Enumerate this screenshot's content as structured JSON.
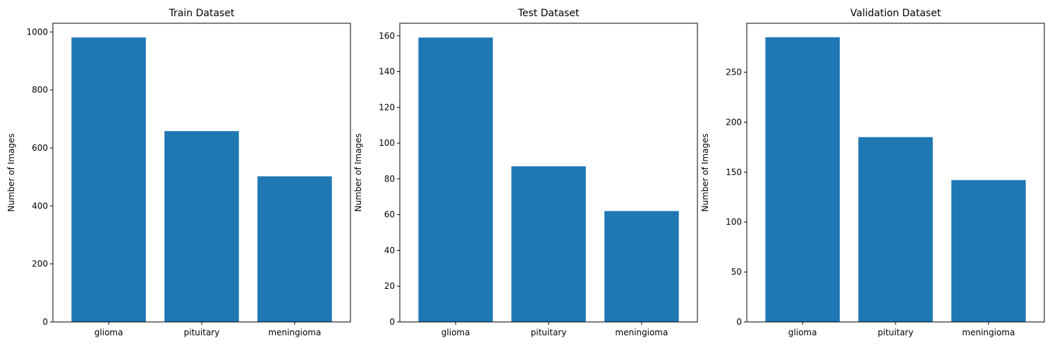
{
  "chart_data": [
    {
      "type": "bar",
      "title": "Train Dataset",
      "xlabel": "",
      "ylabel": "Number of Images",
      "categories": [
        "glioma",
        "pituitary",
        "meningioma"
      ],
      "values": [
        981,
        658,
        502
      ],
      "ylim": [
        0,
        1030
      ],
      "yticks": [
        0,
        200,
        400,
        600,
        800,
        1000
      ],
      "grid": false,
      "bar_color": "#1f77b4"
    },
    {
      "type": "bar",
      "title": "Test Dataset",
      "xlabel": "",
      "ylabel": "Number of Images",
      "categories": [
        "glioma",
        "pituitary",
        "meningioma"
      ],
      "values": [
        159,
        87,
        62
      ],
      "ylim": [
        0,
        167
      ],
      "yticks": [
        0,
        20,
        40,
        60,
        80,
        100,
        120,
        140,
        160
      ],
      "grid": false,
      "bar_color": "#1f77b4"
    },
    {
      "type": "bar",
      "title": "Validation Dataset",
      "xlabel": "",
      "ylabel": "Number of Images",
      "categories": [
        "glioma",
        "pituitary",
        "meningioma"
      ],
      "values": [
        285,
        185,
        142
      ],
      "ylim": [
        0,
        299
      ],
      "yticks": [
        0,
        50,
        100,
        150,
        200,
        250
      ],
      "grid": false,
      "bar_color": "#1f77b4"
    }
  ]
}
